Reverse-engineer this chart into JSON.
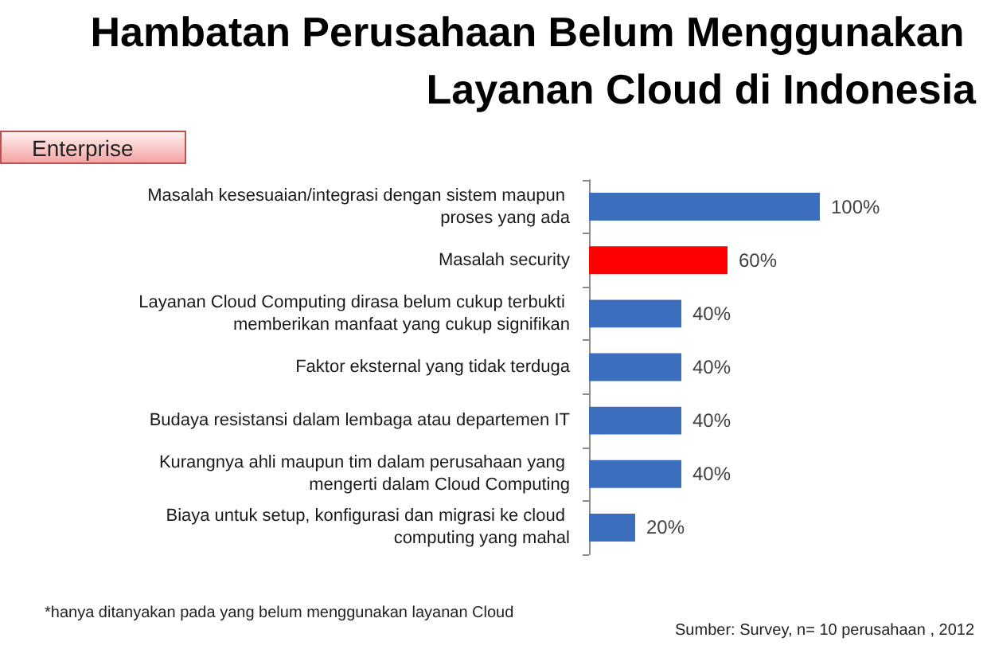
{
  "chart_data": {
    "type": "bar",
    "orientation": "horizontal",
    "title": "Hambatan Perusahaan Belum Menggunakan Layanan Cloud di Indonesia",
    "subtitle": "Enterprise",
    "categories": [
      "Masalah kesesuaian/integrasi dengan sistem maupun proses yang ada",
      "Masalah security",
      "Layanan Cloud Computing dirasa belum cukup terbukti memberikan manfaat yang cukup signifikan",
      "Faktor eksternal yang tidak terduga",
      "Budaya resistansi dalam lembaga atau departemen IT",
      "Kurangnya ahli maupun tim dalam perusahaan yang mengerti dalam Cloud Computing",
      "Biaya untuk setup, konfigurasi dan migrasi ke cloud computing yang mahal"
    ],
    "values": [
      100,
      60,
      40,
      40,
      40,
      40,
      20
    ],
    "value_labels": [
      "100%",
      "60%",
      "40%",
      "40%",
      "40%",
      "40%",
      "20%"
    ],
    "colors": [
      "#3b6fbd",
      "#ff0000",
      "#3b6fbd",
      "#3b6fbd",
      "#3b6fbd",
      "#3b6fbd",
      "#3b6fbd"
    ],
    "annotations": [
      "*hanya ditanyakan pada yang belum menggunakan layanan Cloud",
      "Sumber: Survey, n= 10 perusahaan , 2012"
    ]
  }
}
